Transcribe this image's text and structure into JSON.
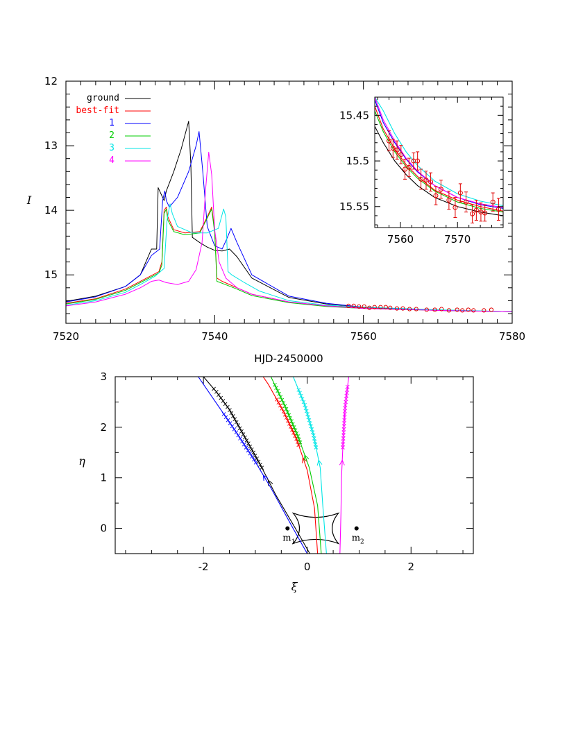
{
  "colors": {
    "ground": "#000000",
    "best-fit": "#ff0000",
    "1": "#0000ff",
    "2": "#00cc00",
    "3": "#00e6e6",
    "4": "#ff00ff",
    "data": "#e00000"
  },
  "chart_data": [
    {
      "id": "lightcurve",
      "type": "line",
      "xlabel": "HJD-2450000",
      "ylabel": "I",
      "xlim": [
        7520,
        7580
      ],
      "ylim": [
        15.75,
        12.0
      ],
      "y_inverted": true,
      "xticks": [
        7520,
        7540,
        7560,
        7580
      ],
      "yticks": [
        12,
        13,
        14,
        15
      ],
      "legend_position": "top-left",
      "legend": [
        "ground",
        "best-fit",
        "1",
        "2",
        "3",
        "4"
      ],
      "series": [
        {
          "name": "ground",
          "color_key": "ground",
          "x": [
            7520,
            7524,
            7528,
            7530,
            7531.5,
            7532.2,
            7532.4,
            7532.8,
            7533.2,
            7533.5,
            7534.5,
            7535.5,
            7536.5,
            7536.8,
            7537,
            7538,
            7539,
            7540,
            7541,
            7542,
            7543,
            7545,
            7550,
            7555,
            7560,
            7570,
            7580
          ],
          "y": [
            15.41,
            15.33,
            15.18,
            15.0,
            14.6,
            14.6,
            13.65,
            13.75,
            13.85,
            13.7,
            13.4,
            13.05,
            12.62,
            13.3,
            14.42,
            14.5,
            14.57,
            14.62,
            14.63,
            14.6,
            14.72,
            15.05,
            15.35,
            15.45,
            15.5,
            15.55,
            15.57
          ]
        },
        {
          "name": "best-fit",
          "color_key": "best-fit",
          "x": [
            7520,
            7524,
            7528,
            7530,
            7532.5,
            7532.9,
            7533.2,
            7533.5,
            7533.7,
            7534.5,
            7536,
            7538,
            7539,
            7539.6,
            7540,
            7540.3,
            7541,
            7543,
            7545,
            7550,
            7555,
            7560,
            7570,
            7580
          ],
          "y": [
            15.44,
            15.37,
            15.22,
            15.1,
            14.95,
            14.8,
            14.0,
            13.95,
            14.1,
            14.3,
            14.35,
            14.33,
            14.1,
            13.95,
            14.3,
            15.05,
            15.1,
            15.2,
            15.3,
            15.42,
            15.48,
            15.51,
            15.55,
            15.57
          ]
        },
        {
          "name": "1",
          "color_key": "1",
          "x": [
            7520,
            7524,
            7528,
            7530,
            7531.5,
            7532.6,
            7533,
            7533.3,
            7533.5,
            7533.9,
            7535,
            7536.5,
            7537.5,
            7537.9,
            7538.4,
            7539,
            7540,
            7541,
            7541.6,
            7542.2,
            7543,
            7545,
            7550,
            7555,
            7560,
            7570,
            7580
          ],
          "y": [
            15.42,
            15.34,
            15.18,
            15.0,
            14.7,
            14.6,
            13.85,
            13.7,
            13.85,
            13.95,
            13.8,
            13.4,
            13.0,
            12.78,
            13.4,
            14.25,
            14.55,
            14.6,
            14.45,
            14.28,
            14.5,
            15.0,
            15.33,
            15.44,
            15.5,
            15.55,
            15.57
          ]
        },
        {
          "name": "2",
          "color_key": "2",
          "x": [
            7520,
            7524,
            7528,
            7530,
            7532.5,
            7532.9,
            7533.2,
            7533.5,
            7533.7,
            7534.5,
            7536,
            7538,
            7539,
            7539.6,
            7540,
            7540.3,
            7541,
            7543,
            7545,
            7550,
            7555,
            7560,
            7570,
            7580
          ],
          "y": [
            15.45,
            15.38,
            15.24,
            15.12,
            14.97,
            14.85,
            14.05,
            13.98,
            14.15,
            14.33,
            14.38,
            14.35,
            14.12,
            13.98,
            14.35,
            15.1,
            15.13,
            15.22,
            15.32,
            15.43,
            15.49,
            15.52,
            15.55,
            15.57
          ]
        },
        {
          "name": "3",
          "color_key": "3",
          "x": [
            7520,
            7524,
            7528,
            7530,
            7532,
            7533.2,
            7533.6,
            7534,
            7534.3,
            7535,
            7537,
            7539,
            7540.5,
            7541.2,
            7541.5,
            7541.8,
            7542.3,
            7544,
            7546,
            7550,
            7555,
            7560,
            7570,
            7580
          ],
          "y": [
            15.47,
            15.4,
            15.27,
            15.15,
            15.02,
            14.9,
            14.15,
            13.9,
            14.05,
            14.25,
            14.35,
            14.35,
            14.28,
            13.98,
            14.1,
            14.95,
            15.0,
            15.12,
            15.25,
            15.4,
            15.47,
            15.5,
            15.54,
            15.57
          ]
        },
        {
          "name": "4",
          "color_key": "4",
          "x": [
            7520,
            7524,
            7528,
            7530,
            7531.5,
            7532.5,
            7533.5,
            7535,
            7536.5,
            7537.5,
            7538.3,
            7538.8,
            7539.2,
            7539.6,
            7540,
            7540.6,
            7541.5,
            7543,
            7545,
            7550,
            7555,
            7560,
            7570,
            7580
          ],
          "y": [
            15.48,
            15.42,
            15.3,
            15.2,
            15.1,
            15.08,
            15.12,
            15.15,
            15.1,
            14.92,
            14.5,
            13.65,
            13.1,
            13.45,
            14.3,
            14.8,
            15.05,
            15.2,
            15.3,
            15.42,
            15.48,
            15.52,
            15.55,
            15.57
          ]
        },
        {
          "name": "data",
          "color_key": "data",
          "markers": "circle",
          "x": [
            7558,
            7558.7,
            7559.4,
            7560.1,
            7560.8,
            7561.5,
            7562.3,
            7563,
            7563.6,
            7564.5,
            7565.3,
            7566.2,
            7567.1,
            7568.5,
            7569.6,
            7570.5,
            7571.5,
            7572.6,
            7573.3,
            7574.1,
            7574.8,
            7576.2,
            7577.2
          ],
          "y": [
            15.48,
            15.48,
            15.49,
            15.49,
            15.51,
            15.5,
            15.5,
            15.5,
            15.51,
            15.52,
            15.52,
            15.53,
            15.53,
            15.54,
            15.54,
            15.53,
            15.55,
            15.54,
            15.55,
            15.54,
            15.55,
            15.55,
            15.54
          ]
        }
      ]
    },
    {
      "id": "inset",
      "type": "line",
      "xlim": [
        7555.5,
        7578
      ],
      "ylim": [
        15.573,
        15.43
      ],
      "y_inverted": true,
      "xticks": [
        7560,
        7570
      ],
      "yticks": [
        "15.45",
        "15.5",
        "15.55"
      ],
      "series": [
        {
          "name": "ground",
          "color_key": "ground",
          "x": [
            7555.5,
            7557,
            7559,
            7561,
            7563,
            7566,
            7570,
            7574,
            7578
          ],
          "y": [
            15.462,
            15.48,
            15.5,
            15.515,
            15.527,
            15.54,
            15.55,
            15.556,
            15.56
          ]
        },
        {
          "name": "best-fit",
          "color_key": "best-fit",
          "x": [
            7555.5,
            7557,
            7559,
            7561,
            7563,
            7566,
            7570,
            7574,
            7578
          ],
          "y": [
            15.44,
            15.465,
            15.487,
            15.504,
            15.517,
            15.532,
            15.543,
            15.55,
            15.555
          ]
        },
        {
          "name": "1",
          "color_key": "1",
          "x": [
            7555.5,
            7557,
            7559,
            7561,
            7563,
            7566,
            7570,
            7574,
            7578
          ],
          "y": [
            15.433,
            15.458,
            15.48,
            15.498,
            15.512,
            15.527,
            15.54,
            15.548,
            15.552
          ]
        },
        {
          "name": "2",
          "color_key": "2",
          "x": [
            7555.5,
            7557,
            7559,
            7561,
            7563,
            7566,
            7570,
            7574,
            7578
          ],
          "y": [
            15.445,
            15.468,
            15.49,
            15.506,
            15.519,
            15.533,
            15.545,
            15.552,
            15.556
          ]
        },
        {
          "name": "3",
          "color_key": "3",
          "x": [
            7555.5,
            7557,
            7559,
            7561,
            7563,
            7566,
            7570,
            7574,
            7578
          ],
          "y": [
            15.43,
            15.445,
            15.47,
            15.49,
            15.505,
            15.522,
            15.536,
            15.544,
            15.549
          ]
        },
        {
          "name": "4",
          "color_key": "4",
          "x": [
            7555.5,
            7557,
            7559,
            7561,
            7563,
            7566,
            7570,
            7574,
            7578
          ],
          "y": [
            15.43,
            15.455,
            15.478,
            15.497,
            15.511,
            15.527,
            15.54,
            15.547,
            15.551
          ]
        },
        {
          "name": "data",
          "color_key": "data",
          "markers": "circle",
          "x": [
            7558,
            7558.7,
            7559.4,
            7560.1,
            7560.8,
            7561.5,
            7562.3,
            7563,
            7563.6,
            7564.5,
            7565.3,
            7566.2,
            7567.1,
            7568.5,
            7569.6,
            7570.5,
            7571.5,
            7572.6,
            7573.3,
            7574.1,
            7574.8,
            7576.2,
            7577.2
          ],
          "y": [
            15.478,
            15.486,
            15.488,
            15.493,
            15.509,
            15.507,
            15.5,
            15.5,
            15.52,
            15.521,
            15.523,
            15.538,
            15.531,
            15.543,
            15.551,
            15.535,
            15.545,
            15.558,
            15.554,
            15.556,
            15.557,
            15.545,
            15.553
          ],
          "err": [
            0.011,
            0.01,
            0.01,
            0.01,
            0.011,
            0.01,
            0.009,
            0.01,
            0.011,
            0.01,
            0.01,
            0.01,
            0.01,
            0.01,
            0.011,
            0.01,
            0.011,
            0.01,
            0.011,
            0.01,
            0.009,
            0.01,
            0.012
          ]
        }
      ]
    },
    {
      "id": "geometry",
      "type": "line",
      "xlabel": "ξ",
      "ylabel": "η",
      "xlim": [
        -3.7,
        3.2
      ],
      "ylim": [
        -0.5,
        3.0
      ],
      "xticks": [
        -2,
        0,
        2
      ],
      "yticks": [
        0,
        1,
        2,
        3
      ],
      "masses": [
        {
          "label": "m",
          "sub": "1",
          "x": -0.38,
          "y": 0.0
        },
        {
          "label": "m",
          "sub": "2",
          "x": 0.95,
          "y": 0.0
        }
      ],
      "caustic": [
        [
          -0.27,
          0.3
        ],
        [
          0.6,
          0.3
        ],
        [
          0.6,
          -0.3
        ],
        [
          -0.27,
          -0.3
        ]
      ],
      "series": [
        {
          "name": "ground",
          "color_key": "ground",
          "x": [
            0.05,
            -0.2,
            -0.6,
            -0.9,
            -1.2,
            -1.5,
            -1.75,
            -2.0
          ],
          "y": [
            -0.5,
            -0.05,
            0.65,
            1.25,
            1.8,
            2.35,
            2.7,
            3.0
          ],
          "marks_from": 1.2,
          "marks_to": 2.8
        },
        {
          "name": "1",
          "color_key": "1",
          "x": [
            0.0,
            -0.3,
            -0.7,
            -1.05,
            -1.4,
            -1.7,
            -2.1
          ],
          "y": [
            -0.5,
            0.05,
            0.8,
            1.4,
            1.95,
            2.4,
            3.0
          ],
          "marks_from": 1.3,
          "marks_to": 2.3
        },
        {
          "name": "best-fit",
          "color_key": "best-fit",
          "x": [
            0.2,
            0.14,
            0.0,
            -0.2,
            -0.45,
            -0.75,
            -0.85
          ],
          "y": [
            -0.5,
            0.4,
            1.15,
            1.75,
            2.3,
            2.85,
            3.0
          ],
          "marks_from": 1.65,
          "marks_to": 2.55
        },
        {
          "name": "2",
          "color_key": "2",
          "x": [
            0.27,
            0.2,
            0.04,
            -0.17,
            -0.42,
            -0.7
          ],
          "y": [
            -0.5,
            0.45,
            1.2,
            1.8,
            2.4,
            3.0
          ],
          "marks_from": 1.7,
          "marks_to": 2.85
        },
        {
          "name": "3",
          "color_key": "3",
          "x": [
            0.37,
            0.3,
            0.25,
            0.12,
            -0.05,
            -0.27
          ],
          "y": [
            -0.5,
            0.45,
            1.2,
            1.85,
            2.45,
            3.0
          ],
          "marks_from": 1.6,
          "marks_to": 2.75
        },
        {
          "name": "4",
          "color_key": "4",
          "x": [
            0.63,
            0.65,
            0.66,
            0.69,
            0.73,
            0.8
          ],
          "y": [
            -0.5,
            0.3,
            1.0,
            1.7,
            2.4,
            3.0
          ],
          "marks_from": 1.6,
          "marks_to": 2.85
        }
      ]
    }
  ]
}
